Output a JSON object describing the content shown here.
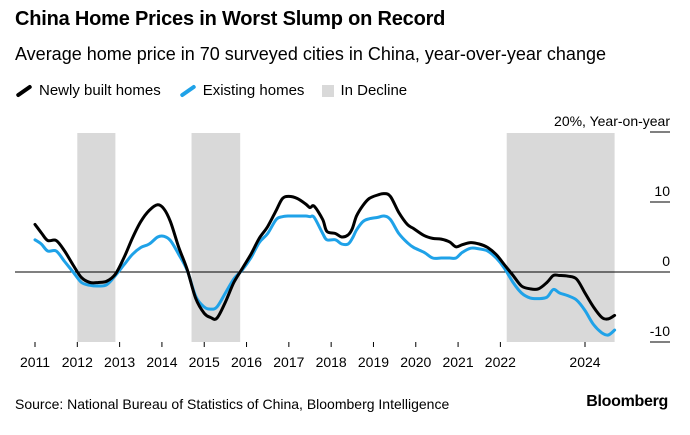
{
  "header": {
    "title": "China Home Prices in Worst Slump on Record",
    "subtitle": "Average home price in 70 surveyed cities in China, year-over-year change"
  },
  "legend": {
    "items": [
      {
        "label": "Newly built homes",
        "color": "#000000"
      },
      {
        "label": "Existing homes",
        "color": "#1fa2e8"
      },
      {
        "label": "In Decline",
        "color": "#d9d9d9"
      }
    ]
  },
  "footer": {
    "source": "Source: National Bureau of Statistics of China, Bloomberg Intelligence",
    "brand": "Bloomberg"
  },
  "chart_data": {
    "type": "line",
    "y_unit_label": "20%, Year-on-year",
    "ylim": [
      -10,
      20
    ],
    "xlim": [
      2011,
      2024.9
    ],
    "y_ticks": [
      {
        "value": 20,
        "label": "20%, Year-on-year"
      },
      {
        "value": 10,
        "label": "10"
      },
      {
        "value": 0,
        "label": "0"
      },
      {
        "value": -10,
        "label": "-10"
      }
    ],
    "x_ticks": [
      {
        "value": 2011,
        "label": "2011"
      },
      {
        "value": 2012,
        "label": "2012"
      },
      {
        "value": 2013,
        "label": "2013"
      },
      {
        "value": 2014,
        "label": "2014"
      },
      {
        "value": 2015,
        "label": "2015"
      },
      {
        "value": 2016,
        "label": "2016"
      },
      {
        "value": 2017,
        "label": "2017"
      },
      {
        "value": 2018,
        "label": "2018"
      },
      {
        "value": 2019,
        "label": "2019"
      },
      {
        "value": 2020,
        "label": "2020"
      },
      {
        "value": 2021,
        "label": "2021"
      },
      {
        "value": 2022,
        "label": "2022"
      },
      {
        "value": 2024,
        "label": "2024"
      }
    ],
    "decline_periods": [
      [
        2012.0,
        2012.9
      ],
      [
        2014.7,
        2015.85
      ],
      [
        2022.15,
        2024.7
      ]
    ],
    "series": [
      {
        "name": "Newly built homes",
        "color": "#000000",
        "points": [
          [
            2011.0,
            6.8
          ],
          [
            2011.15,
            5.6
          ],
          [
            2011.3,
            4.5
          ],
          [
            2011.5,
            4.5
          ],
          [
            2011.7,
            3.0
          ],
          [
            2011.9,
            1.0
          ],
          [
            2012.1,
            -0.8
          ],
          [
            2012.3,
            -1.5
          ],
          [
            2012.5,
            -1.5
          ],
          [
            2012.7,
            -1.3
          ],
          [
            2012.9,
            -0.3
          ],
          [
            2013.1,
            2.0
          ],
          [
            2013.3,
            4.8
          ],
          [
            2013.5,
            7.2
          ],
          [
            2013.7,
            8.8
          ],
          [
            2013.9,
            9.6
          ],
          [
            2014.05,
            9.0
          ],
          [
            2014.2,
            7.2
          ],
          [
            2014.4,
            3.5
          ],
          [
            2014.6,
            0.3
          ],
          [
            2014.8,
            -3.8
          ],
          [
            2015.0,
            -5.9
          ],
          [
            2015.15,
            -6.5
          ],
          [
            2015.3,
            -6.6
          ],
          [
            2015.5,
            -4.3
          ],
          [
            2015.7,
            -1.5
          ],
          [
            2015.9,
            0.5
          ],
          [
            2016.1,
            2.5
          ],
          [
            2016.3,
            4.8
          ],
          [
            2016.5,
            6.5
          ],
          [
            2016.7,
            8.8
          ],
          [
            2016.85,
            10.5
          ],
          [
            2017.0,
            10.8
          ],
          [
            2017.2,
            10.5
          ],
          [
            2017.4,
            9.7
          ],
          [
            2017.5,
            9.2
          ],
          [
            2017.6,
            9.4
          ],
          [
            2017.8,
            7.5
          ],
          [
            2017.9,
            5.8
          ],
          [
            2018.1,
            5.5
          ],
          [
            2018.25,
            5.0
          ],
          [
            2018.4,
            5.3
          ],
          [
            2018.5,
            6.2
          ],
          [
            2018.6,
            8.0
          ],
          [
            2018.75,
            9.5
          ],
          [
            2018.9,
            10.5
          ],
          [
            2019.1,
            11.0
          ],
          [
            2019.25,
            11.2
          ],
          [
            2019.4,
            10.8
          ],
          [
            2019.6,
            8.5
          ],
          [
            2019.8,
            6.8
          ],
          [
            2019.95,
            6.2
          ],
          [
            2020.2,
            5.2
          ],
          [
            2020.4,
            4.8
          ],
          [
            2020.6,
            4.7
          ],
          [
            2020.8,
            4.3
          ],
          [
            2020.95,
            3.6
          ],
          [
            2021.1,
            3.9
          ],
          [
            2021.3,
            4.2
          ],
          [
            2021.5,
            4.0
          ],
          [
            2021.7,
            3.5
          ],
          [
            2021.9,
            2.5
          ],
          [
            2022.1,
            1.0
          ],
          [
            2022.3,
            -0.5
          ],
          [
            2022.5,
            -2.0
          ],
          [
            2022.7,
            -2.4
          ],
          [
            2022.9,
            -2.4
          ],
          [
            2023.1,
            -1.5
          ],
          [
            2023.25,
            -0.5
          ],
          [
            2023.4,
            -0.5
          ],
          [
            2023.6,
            -0.6
          ],
          [
            2023.8,
            -1.0
          ],
          [
            2024.0,
            -3.0
          ],
          [
            2024.2,
            -5.0
          ],
          [
            2024.4,
            -6.5
          ],
          [
            2024.55,
            -6.7
          ],
          [
            2024.7,
            -6.2
          ]
        ]
      },
      {
        "name": "Existing homes",
        "color": "#1fa2e8",
        "points": [
          [
            2011.0,
            4.6
          ],
          [
            2011.15,
            4.0
          ],
          [
            2011.3,
            3.0
          ],
          [
            2011.5,
            3.0
          ],
          [
            2011.7,
            1.5
          ],
          [
            2011.9,
            0.0
          ],
          [
            2012.1,
            -1.5
          ],
          [
            2012.3,
            -1.9
          ],
          [
            2012.5,
            -2.0
          ],
          [
            2012.7,
            -1.8
          ],
          [
            2012.9,
            -0.5
          ],
          [
            2013.1,
            1.0
          ],
          [
            2013.3,
            2.5
          ],
          [
            2013.5,
            3.5
          ],
          [
            2013.7,
            4.0
          ],
          [
            2013.9,
            5.0
          ],
          [
            2014.05,
            5.1
          ],
          [
            2014.2,
            4.5
          ],
          [
            2014.4,
            2.5
          ],
          [
            2014.6,
            0.2
          ],
          [
            2014.8,
            -3.5
          ],
          [
            2015.0,
            -5.0
          ],
          [
            2015.15,
            -5.3
          ],
          [
            2015.3,
            -5.0
          ],
          [
            2015.5,
            -3.0
          ],
          [
            2015.7,
            -1.0
          ],
          [
            2015.9,
            0.3
          ],
          [
            2016.1,
            2.0
          ],
          [
            2016.3,
            4.2
          ],
          [
            2016.5,
            5.5
          ],
          [
            2016.7,
            7.5
          ],
          [
            2016.85,
            7.9
          ],
          [
            2017.0,
            8.0
          ],
          [
            2017.2,
            8.0
          ],
          [
            2017.4,
            8.0
          ],
          [
            2017.5,
            7.9
          ],
          [
            2017.6,
            7.8
          ],
          [
            2017.8,
            5.5
          ],
          [
            2017.9,
            4.6
          ],
          [
            2018.1,
            4.6
          ],
          [
            2018.25,
            4.0
          ],
          [
            2018.4,
            4.0
          ],
          [
            2018.5,
            4.8
          ],
          [
            2018.6,
            6.0
          ],
          [
            2018.75,
            7.2
          ],
          [
            2018.9,
            7.6
          ],
          [
            2019.1,
            7.8
          ],
          [
            2019.25,
            8.0
          ],
          [
            2019.4,
            7.5
          ],
          [
            2019.6,
            5.5
          ],
          [
            2019.8,
            4.2
          ],
          [
            2019.95,
            3.5
          ],
          [
            2020.2,
            2.8
          ],
          [
            2020.4,
            2.0
          ],
          [
            2020.6,
            2.0
          ],
          [
            2020.8,
            2.0
          ],
          [
            2020.95,
            2.0
          ],
          [
            2021.1,
            2.8
          ],
          [
            2021.3,
            3.4
          ],
          [
            2021.5,
            3.3
          ],
          [
            2021.7,
            3.0
          ],
          [
            2021.9,
            2.0
          ],
          [
            2022.1,
            0.5
          ],
          [
            2022.3,
            -1.5
          ],
          [
            2022.5,
            -3.0
          ],
          [
            2022.7,
            -3.7
          ],
          [
            2022.9,
            -3.8
          ],
          [
            2023.1,
            -3.6
          ],
          [
            2023.25,
            -2.5
          ],
          [
            2023.4,
            -3.0
          ],
          [
            2023.6,
            -3.4
          ],
          [
            2023.8,
            -4.0
          ],
          [
            2024.0,
            -5.5
          ],
          [
            2024.2,
            -7.5
          ],
          [
            2024.4,
            -8.7
          ],
          [
            2024.55,
            -9.0
          ],
          [
            2024.7,
            -8.3
          ]
        ]
      }
    ]
  }
}
